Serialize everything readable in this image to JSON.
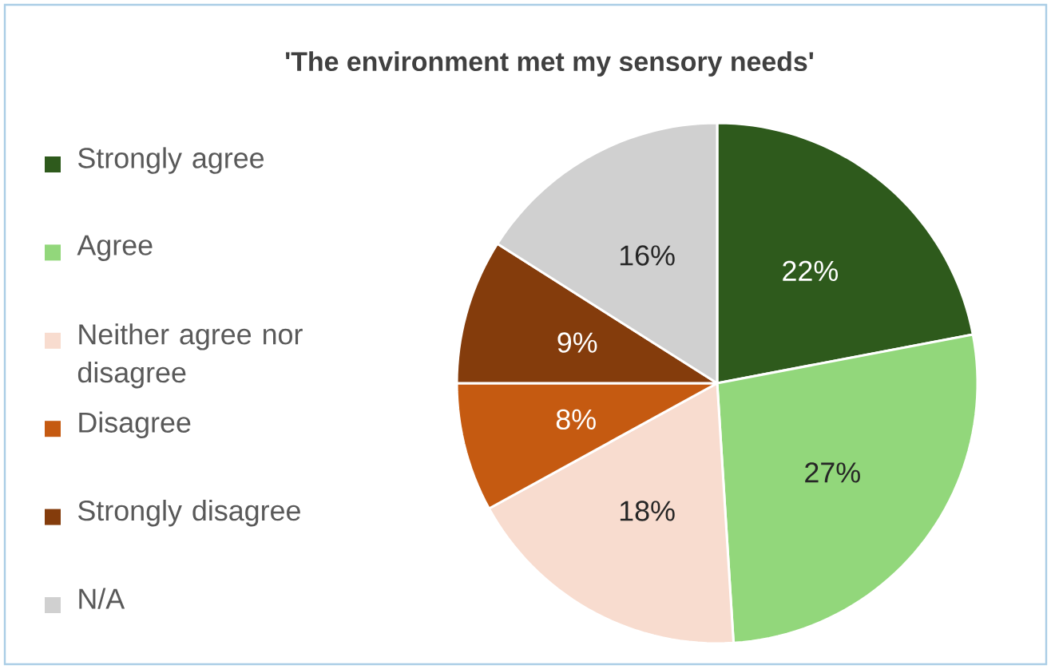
{
  "chart_data": {
    "type": "pie",
    "title": "'The environment met my sensory needs'",
    "categories": [
      "Strongly agree",
      "Agree",
      "Neither agree nor disagree",
      "Disagree",
      "Strongly disagree",
      "N/A"
    ],
    "values": [
      22,
      27,
      18,
      8,
      9,
      16
    ],
    "colors": [
      "#2e5a1c",
      "#92d77b",
      "#f8dccf",
      "#c55a11",
      "#843c0c",
      "#d0d0d0"
    ],
    "value_labels": [
      "22%",
      "27%",
      "18%",
      "8%",
      "9%",
      "16%"
    ],
    "legend": "left"
  }
}
